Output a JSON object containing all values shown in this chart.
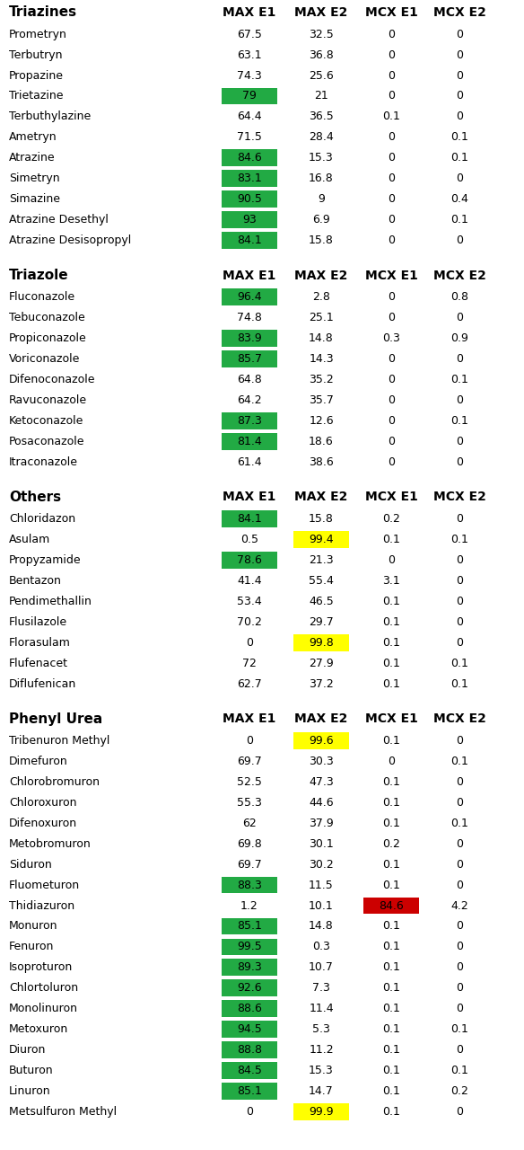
{
  "sections": [
    {
      "header": "Triazines",
      "rows": [
        {
          "name": "Prometryn",
          "MAX E1": 67.5,
          "MAX E2": 32.5,
          "MCX E1": 0,
          "MCX E2": 0
        },
        {
          "name": "Terbutryn",
          "MAX E1": 63.1,
          "MAX E2": 36.8,
          "MCX E1": 0,
          "MCX E2": 0
        },
        {
          "name": "Propazine",
          "MAX E1": 74.3,
          "MAX E2": 25.6,
          "MCX E1": 0,
          "MCX E2": 0
        },
        {
          "name": "Trietazine",
          "MAX E1": 79,
          "MAX E2": 21,
          "MCX E1": 0,
          "MCX E2": 0
        },
        {
          "name": "Terbuthylazine",
          "MAX E1": 64.4,
          "MAX E2": 36.5,
          "MCX E1": 0.1,
          "MCX E2": 0
        },
        {
          "name": "Ametryn",
          "MAX E1": 71.5,
          "MAX E2": 28.4,
          "MCX E1": 0,
          "MCX E2": 0.1
        },
        {
          "name": "Atrazine",
          "MAX E1": 84.6,
          "MAX E2": 15.3,
          "MCX E1": 0,
          "MCX E2": 0.1
        },
        {
          "name": "Simetryn",
          "MAX E1": 83.1,
          "MAX E2": 16.8,
          "MCX E1": 0,
          "MCX E2": 0
        },
        {
          "name": "Simazine",
          "MAX E1": 90.5,
          "MAX E2": 9,
          "MCX E1": 0,
          "MCX E2": 0.4
        },
        {
          "name": "Atrazine Desethyl",
          "MAX E1": 93,
          "MAX E2": 6.9,
          "MCX E1": 0,
          "MCX E2": 0.1
        },
        {
          "name": "Atrazine Desisopropyl",
          "MAX E1": 84.1,
          "MAX E2": 15.8,
          "MCX E1": 0,
          "MCX E2": 0
        }
      ]
    },
    {
      "header": "Triazole",
      "rows": [
        {
          "name": "Fluconazole",
          "MAX E1": 96.4,
          "MAX E2": 2.8,
          "MCX E1": 0,
          "MCX E2": 0.8
        },
        {
          "name": "Tebuconazole",
          "MAX E1": 74.8,
          "MAX E2": 25.1,
          "MCX E1": 0,
          "MCX E2": 0
        },
        {
          "name": "Propiconazole",
          "MAX E1": 83.9,
          "MAX E2": 14.8,
          "MCX E1": 0.3,
          "MCX E2": 0.9
        },
        {
          "name": "Voriconazole",
          "MAX E1": 85.7,
          "MAX E2": 14.3,
          "MCX E1": 0,
          "MCX E2": 0
        },
        {
          "name": "Difenoconazole",
          "MAX E1": 64.8,
          "MAX E2": 35.2,
          "MCX E1": 0,
          "MCX E2": 0.1
        },
        {
          "name": "Ravuconazole",
          "MAX E1": 64.2,
          "MAX E2": 35.7,
          "MCX E1": 0,
          "MCX E2": 0
        },
        {
          "name": "Ketoconazole",
          "MAX E1": 87.3,
          "MAX E2": 12.6,
          "MCX E1": 0,
          "MCX E2": 0.1
        },
        {
          "name": "Posaconazole",
          "MAX E1": 81.4,
          "MAX E2": 18.6,
          "MCX E1": 0,
          "MCX E2": 0
        },
        {
          "name": "Itraconazole",
          "MAX E1": 61.4,
          "MAX E2": 38.6,
          "MCX E1": 0,
          "MCX E2": 0
        }
      ]
    },
    {
      "header": "Others",
      "rows": [
        {
          "name": "Chloridazon",
          "MAX E1": 84.1,
          "MAX E2": 15.8,
          "MCX E1": 0.2,
          "MCX E2": 0
        },
        {
          "name": "Asulam",
          "MAX E1": 0.5,
          "MAX E2": 99.4,
          "MCX E1": 0.1,
          "MCX E2": 0.1
        },
        {
          "name": "Propyzamide",
          "MAX E1": 78.6,
          "MAX E2": 21.3,
          "MCX E1": 0,
          "MCX E2": 0
        },
        {
          "name": "Bentazon",
          "MAX E1": 41.4,
          "MAX E2": 55.4,
          "MCX E1": 3.1,
          "MCX E2": 0
        },
        {
          "name": "Pendimethallin",
          "MAX E1": 53.4,
          "MAX E2": 46.5,
          "MCX E1": 0.1,
          "MCX E2": 0
        },
        {
          "name": "Flusilazole",
          "MAX E1": 70.2,
          "MAX E2": 29.7,
          "MCX E1": 0.1,
          "MCX E2": 0
        },
        {
          "name": "Florasulam",
          "MAX E1": 0,
          "MAX E2": 99.8,
          "MCX E1": 0.1,
          "MCX E2": 0
        },
        {
          "name": "Flufenacet",
          "MAX E1": 72,
          "MAX E2": 27.9,
          "MCX E1": 0.1,
          "MCX E2": 0.1
        },
        {
          "name": "Diflufenican",
          "MAX E1": 62.7,
          "MAX E2": 37.2,
          "MCX E1": 0.1,
          "MCX E2": 0.1
        }
      ]
    },
    {
      "header": "Phenyl Urea",
      "rows": [
        {
          "name": "Tribenuron Methyl",
          "MAX E1": 0,
          "MAX E2": 99.6,
          "MCX E1": 0.1,
          "MCX E2": 0
        },
        {
          "name": "Dimefuron",
          "MAX E1": 69.7,
          "MAX E2": 30.3,
          "MCX E1": 0,
          "MCX E2": 0.1
        },
        {
          "name": "Chlorobromuron",
          "MAX E1": 52.5,
          "MAX E2": 47.3,
          "MCX E1": 0.1,
          "MCX E2": 0
        },
        {
          "name": "Chloroxuron",
          "MAX E1": 55.3,
          "MAX E2": 44.6,
          "MCX E1": 0.1,
          "MCX E2": 0
        },
        {
          "name": "Difenoxuron",
          "MAX E1": 62,
          "MAX E2": 37.9,
          "MCX E1": 0.1,
          "MCX E2": 0.1
        },
        {
          "name": "Metobromuron",
          "MAX E1": 69.8,
          "MAX E2": 30.1,
          "MCX E1": 0.2,
          "MCX E2": 0
        },
        {
          "name": "Siduron",
          "MAX E1": 69.7,
          "MAX E2": 30.2,
          "MCX E1": 0.1,
          "MCX E2": 0
        },
        {
          "name": "Fluometuron",
          "MAX E1": 88.3,
          "MAX E2": 11.5,
          "MCX E1": 0.1,
          "MCX E2": 0
        },
        {
          "name": "Thidiazuron",
          "MAX E1": 1.2,
          "MAX E2": 10.1,
          "MCX E1": 84.6,
          "MCX E2": 4.2
        },
        {
          "name": "Monuron",
          "MAX E1": 85.1,
          "MAX E2": 14.8,
          "MCX E1": 0.1,
          "MCX E2": 0
        },
        {
          "name": "Fenuron",
          "MAX E1": 99.5,
          "MAX E2": 0.3,
          "MCX E1": 0.1,
          "MCX E2": 0
        },
        {
          "name": "Isoproturon",
          "MAX E1": 89.3,
          "MAX E2": 10.7,
          "MCX E1": 0.1,
          "MCX E2": 0
        },
        {
          "name": "Chlortoluron",
          "MAX E1": 92.6,
          "MAX E2": 7.3,
          "MCX E1": 0.1,
          "MCX E2": 0
        },
        {
          "name": "Monolinuron",
          "MAX E1": 88.6,
          "MAX E2": 11.4,
          "MCX E1": 0.1,
          "MCX E2": 0
        },
        {
          "name": "Metoxuron",
          "MAX E1": 94.5,
          "MAX E2": 5.3,
          "MCX E1": 0.1,
          "MCX E2": 0.1
        },
        {
          "name": "Diuron",
          "MAX E1": 88.8,
          "MAX E2": 11.2,
          "MCX E1": 0.1,
          "MCX E2": 0
        },
        {
          "name": "Buturon",
          "MAX E1": 84.5,
          "MAX E2": 15.3,
          "MCX E1": 0.1,
          "MCX E2": 0.1
        },
        {
          "name": "Linuron",
          "MAX E1": 85.1,
          "MAX E2": 14.7,
          "MCX E1": 0.1,
          "MCX E2": 0.2
        },
        {
          "name": "Metsulfuron Methyl",
          "MAX E1": 0,
          "MAX E2": 99.9,
          "MCX E1": 0.1,
          "MCX E2": 0
        }
      ]
    }
  ],
  "columns": [
    "MAX E1",
    "MAX E2",
    "MCX E1",
    "MCX E2"
  ],
  "green_threshold": 75,
  "yellow_cases": [
    "Asulam",
    "Florasulam",
    "Tribenuron Methyl",
    "Metsulfuron Methyl"
  ],
  "green_color": "#22AA44",
  "yellow_color": "#FFFF00",
  "red_color": "#CC0000",
  "bg_color": "#FFFFFF",
  "row_fontsize": 9,
  "header_fontsize": 11,
  "col_header_fontsize": 10,
  "fig_width": 5.84,
  "fig_height": 12.8,
  "dpi": 100
}
